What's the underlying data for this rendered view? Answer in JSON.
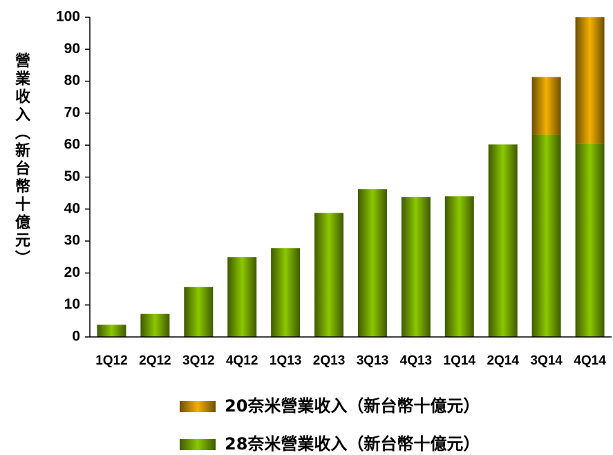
{
  "chart_data": {
    "type": "stacked_bar",
    "y_label": "營業收入（新台幣十億元）",
    "categories": [
      "1Q12",
      "2Q12",
      "3Q12",
      "4Q12",
      "1Q13",
      "2Q13",
      "3Q13",
      "4Q13",
      "1Q14",
      "2Q14",
      "3Q14",
      "4Q14"
    ],
    "series": [
      {
        "name": "28奈米營業收入（新台幣十億元）",
        "color": "#8cc800",
        "values": [
          3.8,
          7.2,
          15.6,
          25,
          27.8,
          38.8,
          46.2,
          43.8,
          44,
          60.2,
          63.3,
          60.5
        ]
      },
      {
        "name": "20奈米營業收入（新台幣十億元）",
        "color": "#f4b000",
        "values": [
          0,
          0,
          0,
          0,
          0,
          0,
          0,
          0,
          0,
          0,
          18,
          39.5
        ]
      }
    ],
    "ylim": [
      0,
      100
    ],
    "yticks": [
      0,
      10,
      20,
      30,
      40,
      50,
      60,
      70,
      80,
      90,
      100
    ]
  }
}
